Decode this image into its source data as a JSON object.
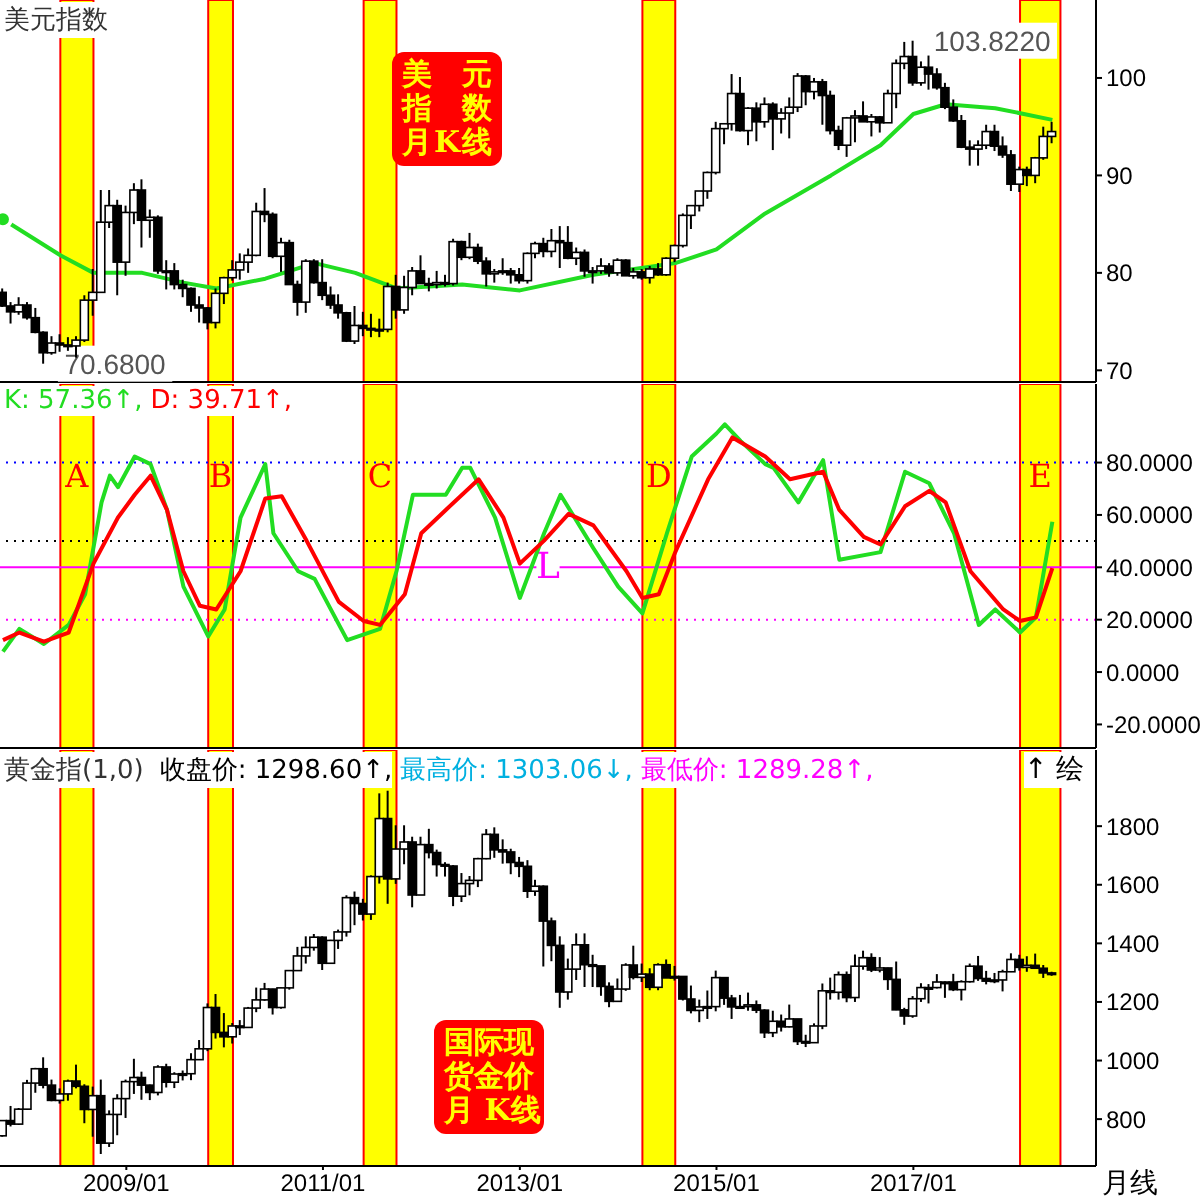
{
  "chart_data": [
    {
      "type": "candlestick",
      "title": "美元指数",
      "tick_labels": "y",
      "xlim": [
        "2007-09-20",
        "2018-11-10"
      ],
      "ylim": [
        68.8,
        108
      ],
      "yticks": [
        70,
        80,
        90,
        100
      ],
      "x": [
        "2007-10",
        "2007-11",
        "2007-12",
        "2008-01",
        "2008-02",
        "2008-03",
        "2008-04",
        "2008-05",
        "2008-06",
        "2008-07",
        "2008-08",
        "2008-09",
        "2008-10",
        "2008-11",
        "2008-12",
        "2009-01",
        "2009-02",
        "2009-03",
        "2009-04",
        "2009-05",
        "2009-06",
        "2009-07",
        "2009-08",
        "2009-09",
        "2009-10",
        "2009-11",
        "2009-12",
        "2010-01",
        "2010-02",
        "2010-03",
        "2010-04",
        "2010-05",
        "2010-06",
        "2010-07",
        "2010-08",
        "2010-09",
        "2010-10",
        "2010-11",
        "2010-12",
        "2011-01",
        "2011-02",
        "2011-03",
        "2011-04",
        "2011-05",
        "2011-06",
        "2011-07",
        "2011-08",
        "2011-09",
        "2011-10",
        "2011-11",
        "2011-12",
        "2012-01",
        "2012-02",
        "2012-03",
        "2012-04",
        "2012-05",
        "2012-06",
        "2012-07",
        "2012-08",
        "2012-09",
        "2012-10",
        "2012-11",
        "2012-12",
        "2013-01",
        "2013-02",
        "2013-03",
        "2013-04",
        "2013-05",
        "2013-06",
        "2013-07",
        "2013-08",
        "2013-09",
        "2013-10",
        "2013-11",
        "2013-12",
        "2014-01",
        "2014-02",
        "2014-03",
        "2014-04",
        "2014-05",
        "2014-06",
        "2014-07",
        "2014-08",
        "2014-09",
        "2014-10",
        "2014-11",
        "2014-12",
        "2015-01",
        "2015-02",
        "2015-03",
        "2015-04",
        "2015-05",
        "2015-06",
        "2015-07",
        "2015-08",
        "2015-09",
        "2015-10",
        "2015-11",
        "2015-12",
        "2016-01",
        "2016-02",
        "2016-03",
        "2016-04",
        "2016-05",
        "2016-06",
        "2016-07",
        "2016-08",
        "2016-09",
        "2016-10",
        "2016-11",
        "2016-12",
        "2017-01",
        "2017-02",
        "2017-03",
        "2017-04",
        "2017-05",
        "2017-06",
        "2017-07",
        "2017-08",
        "2017-09",
        "2017-10",
        "2017-11",
        "2017-12",
        "2018-01",
        "2018-02",
        "2018-03",
        "2018-04",
        "2018-05",
        "2018-06"
      ],
      "ohlc": [
        [
          78.0,
          78.4,
          76.5,
          76.6
        ],
        [
          76.6,
          77.0,
          74.8,
          76.0
        ],
        [
          76.0,
          77.5,
          75.7,
          76.7
        ],
        [
          76.7,
          77.0,
          75.2,
          75.4
        ],
        [
          75.4,
          76.4,
          73.8,
          73.9
        ],
        [
          73.9,
          74.0,
          70.68,
          71.8
        ],
        [
          71.8,
          73.5,
          71.6,
          72.8
        ],
        [
          72.8,
          73.7,
          71.9,
          72.6
        ],
        [
          72.6,
          73.4,
          72.0,
          72.5
        ],
        [
          72.5,
          73.5,
          71.3,
          73.1
        ],
        [
          73.1,
          77.7,
          72.9,
          77.2
        ],
        [
          77.2,
          80.4,
          75.6,
          78.0
        ],
        [
          78.0,
          88.5,
          78.0,
          85.2
        ],
        [
          85.2,
          88.5,
          84.6,
          86.9
        ],
        [
          86.9,
          87.5,
          77.7,
          81.1
        ],
        [
          81.1,
          86.9,
          79.7,
          86.2
        ],
        [
          86.2,
          89.2,
          85.0,
          88.5
        ],
        [
          88.5,
          89.6,
          82.6,
          85.4
        ],
        [
          85.4,
          86.5,
          83.6,
          85.7
        ],
        [
          85.7,
          85.9,
          79.9,
          80.2
        ],
        [
          80.2,
          81.3,
          78.3,
          80.2
        ],
        [
          80.2,
          81.0,
          78.3,
          78.8
        ],
        [
          78.8,
          79.3,
          77.5,
          78.4
        ],
        [
          78.4,
          78.5,
          76.0,
          76.7
        ],
        [
          76.7,
          77.6,
          74.9,
          76.4
        ],
        [
          76.4,
          76.5,
          74.2,
          74.9
        ],
        [
          74.9,
          78.4,
          74.3,
          77.9
        ],
        [
          77.9,
          79.6,
          76.8,
          79.5
        ],
        [
          79.5,
          81.3,
          79.2,
          80.3
        ],
        [
          80.3,
          82.0,
          79.3,
          81.1
        ],
        [
          81.1,
          82.5,
          80.0,
          81.8
        ],
        [
          81.8,
          87.2,
          81.7,
          86.3
        ],
        [
          86.3,
          88.7,
          85.2,
          86.0
        ],
        [
          86.0,
          86.2,
          81.5,
          81.7
        ],
        [
          81.7,
          83.6,
          80.1,
          83.1
        ],
        [
          83.1,
          83.4,
          78.8,
          78.8
        ],
        [
          78.8,
          79.2,
          75.6,
          77.0
        ],
        [
          77.0,
          81.4,
          75.9,
          81.2
        ],
        [
          81.2,
          81.4,
          78.9,
          79.0
        ],
        [
          79.0,
          81.4,
          77.2,
          77.7
        ],
        [
          77.7,
          78.6,
          76.3,
          76.7
        ],
        [
          76.7,
          77.8,
          75.3,
          75.9
        ],
        [
          75.9,
          76.0,
          72.9,
          73.0
        ],
        [
          73.0,
          76.6,
          72.7,
          74.6
        ],
        [
          74.6,
          76.0,
          73.5,
          74.3
        ],
        [
          74.3,
          75.8,
          73.4,
          74.2
        ],
        [
          74.2,
          75.3,
          73.4,
          74.2
        ],
        [
          74.2,
          79.0,
          73.9,
          78.6
        ],
        [
          78.6,
          79.8,
          75.3,
          76.2
        ],
        [
          76.2,
          79.7,
          75.8,
          78.5
        ],
        [
          78.5,
          80.6,
          77.7,
          80.2
        ],
        [
          80.2,
          81.8,
          78.9,
          78.9
        ],
        [
          78.9,
          79.5,
          78.1,
          78.8
        ],
        [
          78.8,
          80.2,
          78.4,
          79.0
        ],
        [
          79.0,
          79.8,
          78.6,
          78.9
        ],
        [
          78.9,
          83.5,
          78.7,
          83.2
        ],
        [
          83.2,
          83.3,
          81.3,
          81.6
        ],
        [
          81.6,
          84.1,
          81.4,
          82.6
        ],
        [
          82.6,
          83.0,
          80.9,
          81.2
        ],
        [
          81.2,
          81.6,
          78.6,
          79.9
        ],
        [
          79.9,
          80.4,
          79.0,
          80.1
        ],
        [
          80.1,
          81.5,
          79.8,
          80.2
        ],
        [
          80.2,
          80.5,
          78.9,
          79.8
        ],
        [
          79.8,
          80.5,
          78.9,
          79.2
        ],
        [
          79.2,
          82.1,
          78.9,
          82.0
        ],
        [
          82.0,
          83.2,
          81.5,
          83.0
        ],
        [
          83.0,
          83.6,
          81.6,
          82.2
        ],
        [
          82.2,
          84.5,
          81.6,
          83.3
        ],
        [
          83.3,
          84.8,
          80.5,
          83.1
        ],
        [
          83.1,
          84.8,
          81.4,
          81.5
        ],
        [
          81.5,
          82.6,
          80.8,
          82.1
        ],
        [
          82.1,
          82.4,
          79.6,
          80.2
        ],
        [
          80.2,
          80.6,
          78.9,
          80.2
        ],
        [
          80.2,
          81.5,
          79.9,
          80.7
        ],
        [
          80.7,
          81.0,
          79.6,
          80.0
        ],
        [
          80.0,
          81.5,
          79.7,
          81.3
        ],
        [
          81.3,
          81.4,
          79.7,
          79.7
        ],
        [
          79.7,
          80.5,
          79.4,
          80.1
        ],
        [
          80.1,
          80.4,
          79.3,
          79.5
        ],
        [
          79.5,
          80.7,
          78.9,
          80.4
        ],
        [
          80.4,
          81.0,
          79.7,
          79.8
        ],
        [
          79.8,
          81.6,
          79.7,
          81.5
        ],
        [
          81.5,
          82.9,
          81.1,
          82.8
        ],
        [
          82.8,
          86.1,
          82.6,
          85.9
        ],
        [
          85.9,
          86.9,
          84.5,
          86.9
        ],
        [
          86.9,
          88.4,
          86.3,
          88.4
        ],
        [
          88.4,
          90.4,
          87.6,
          90.3
        ],
        [
          90.3,
          95.5,
          90.1,
          94.8
        ],
        [
          94.8,
          95.3,
          93.2,
          95.3
        ],
        [
          95.3,
          100.4,
          94.6,
          98.4
        ],
        [
          98.4,
          100.1,
          94.5,
          94.6
        ],
        [
          94.6,
          97.0,
          93.1,
          96.9
        ],
        [
          96.9,
          97.5,
          93.5,
          95.5
        ],
        [
          95.5,
          98.0,
          94.9,
          97.3
        ],
        [
          97.3,
          97.5,
          92.6,
          95.8
        ],
        [
          95.8,
          96.9,
          94.3,
          96.4
        ],
        [
          96.4,
          98.0,
          93.8,
          97.0
        ],
        [
          97.0,
          100.5,
          96.5,
          100.2
        ],
        [
          100.2,
          100.3,
          97.2,
          98.6
        ],
        [
          98.6,
          100.0,
          97.8,
          99.6
        ],
        [
          99.6,
          99.9,
          95.2,
          98.2
        ],
        [
          98.2,
          98.7,
          94.2,
          94.6
        ],
        [
          94.6,
          95.1,
          92.6,
          93.1
        ],
        [
          93.1,
          96.0,
          91.9,
          95.9
        ],
        [
          95.9,
          96.7,
          93.4,
          96.1
        ],
        [
          96.1,
          97.6,
          95.5,
          95.5
        ],
        [
          95.5,
          96.3,
          94.0,
          96.0
        ],
        [
          96.0,
          96.1,
          94.4,
          95.4
        ],
        [
          95.4,
          98.8,
          95.4,
          98.4
        ],
        [
          98.4,
          101.9,
          96.9,
          101.5
        ],
        [
          101.5,
          103.7,
          100.9,
          102.2
        ],
        [
          102.2,
          103.822,
          99.2,
          99.5
        ],
        [
          99.5,
          101.7,
          99.2,
          101.1
        ],
        [
          101.1,
          102.3,
          98.8,
          100.4
        ],
        [
          100.4,
          101.0,
          98.8,
          99.0
        ],
        [
          99.0,
          99.5,
          96.8,
          97.0
        ],
        [
          97.0,
          97.8,
          95.5,
          95.6
        ],
        [
          95.6,
          96.2,
          92.8,
          92.9
        ],
        [
          92.9,
          93.6,
          91.0,
          92.7
        ],
        [
          92.7,
          93.6,
          91.0,
          93.1
        ],
        [
          93.1,
          95.2,
          92.7,
          94.5
        ],
        [
          94.5,
          95.2,
          92.5,
          93.0
        ],
        [
          93.0,
          94.0,
          91.8,
          92.1
        ],
        [
          92.1,
          92.6,
          88.4,
          89.1
        ],
        [
          89.1,
          90.9,
          88.3,
          90.6
        ],
        [
          90.6,
          90.9,
          88.9,
          90.0
        ],
        [
          90.0,
          91.9,
          89.2,
          91.8
        ],
        [
          91.8,
          95.0,
          91.6,
          94.0
        ],
        [
          94.0,
          95.5,
          93.3,
          94.5
        ]
      ],
      "series": [
        {
          "type": "line",
          "color": "#22dd22",
          "x": [
            "2007-10",
            "2008-05",
            "2008-09",
            "2009-03",
            "2009-08",
            "2009-12",
            "2010-06",
            "2010-12",
            "2011-05",
            "2011-10",
            "2012-06",
            "2013-01",
            "2013-10",
            "2014-08",
            "2015-01",
            "2015-07",
            "2016-03",
            "2016-09",
            "2017-01",
            "2017-05",
            "2017-11",
            "2018-06"
          ],
          "values": [
            85.5,
            81.8,
            80.0,
            80.0,
            79.0,
            78.4,
            79.4,
            81.0,
            80.0,
            78.4,
            78.8,
            78.2,
            79.8,
            81.0,
            82.4,
            86.1,
            90.0,
            93.1,
            96.3,
            97.3,
            96.9,
            95.7
          ]
        }
      ],
      "marker": "none",
      "bands": [
        {
          "axis": "x",
          "from": "2008-05",
          "to": "2008-09",
          "color": "#ffff00"
        },
        {
          "axis": "x",
          "from": "2009-11",
          "to": "2010-02",
          "color": "#ffff00"
        },
        {
          "axis": "x",
          "from": "2011-06",
          "to": "2011-10",
          "color": "#ffff00"
        },
        {
          "axis": "x",
          "from": "2014-04",
          "to": "2014-08",
          "color": "#ffff00"
        },
        {
          "axis": "x",
          "from": "2018-02",
          "to": "2018-07",
          "color": "#ffff00"
        }
      ],
      "annotations": [
        {
          "text": "103.8220",
          "x": "2017-01",
          "y": 103.822
        },
        {
          "text": "70.6800",
          "x": "2008-03",
          "y": 70.68
        },
        "美元指数月K线"
      ]
    },
    {
      "type": "line",
      "tick_labels": "y",
      "marker": "none",
      "xlim": [
        "2007-09-20",
        "2018-11-10"
      ],
      "ylim": [
        -29,
        110
      ],
      "yticks": [
        {
          "value": 80,
          "label": "80.0000"
        },
        {
          "value": 60,
          "label": "60.0000"
        },
        {
          "value": 40,
          "label": "40.0000"
        },
        {
          "value": 20,
          "label": "20.0000"
        },
        {
          "value": 0,
          "label": "0.0000"
        },
        {
          "value": -20,
          "label": "-20.0000"
        }
      ],
      "series": [
        {
          "color": "#22dd22",
          "x": [
            "2007-10",
            "2007-12",
            "2008-03",
            "2008-06",
            "2008-08",
            "2008-10",
            "2008-11",
            "2008-12",
            "2009-02",
            "2009-04",
            "2009-06",
            "2009-08",
            "2009-11",
            "2010-01",
            "2010-03",
            "2010-06",
            "2010-07",
            "2010-10",
            "2010-12",
            "2011-04",
            "2011-08",
            "2011-10",
            "2011-12",
            "2012-04",
            "2012-06",
            "2012-07",
            "2012-10",
            "2013-01",
            "2013-04",
            "2013-06",
            "2013-10",
            "2014-01",
            "2014-04",
            "2014-07",
            "2014-10",
            "2015-01",
            "2015-02",
            "2015-04",
            "2015-07",
            "2015-08",
            "2015-11",
            "2016-02",
            "2016-04",
            "2016-09",
            "2016-12",
            "2017-03",
            "2017-06",
            "2017-09",
            "2017-11",
            "2018-02",
            "2018-04",
            "2018-06"
          ],
          "values": [
            7.8,
            16.5,
            10.7,
            18,
            29.7,
            64.8,
            75,
            70.6,
            82.3,
            79.4,
            61.9,
            32.6,
            13.6,
            23.9,
            59,
            79.4,
            53,
            38.5,
            35.6,
            12.2,
            16.5,
            38.5,
            67.7,
            67.7,
            78,
            78,
            59,
            28.3,
            53,
            67.7,
            47.3,
            32.6,
            22.4,
            53,
            82.3,
            91.1,
            94.6,
            88.2,
            79.4,
            78,
            64.8,
            80.9,
            42.9,
            45.8,
            76.5,
            72.1,
            53,
            18,
            23.9,
            15.1,
            20.9,
            57.4
          ]
        },
        {
          "color": "#ff0000",
          "x": [
            "2007-10",
            "2007-12",
            "2008-03",
            "2008-06",
            "2008-09",
            "2008-12",
            "2009-02",
            "2009-04",
            "2009-06",
            "2009-08",
            "2009-10",
            "2009-12",
            "2010-03",
            "2010-06",
            "2010-08",
            "2010-11",
            "2011-03",
            "2011-06",
            "2011-08",
            "2011-11",
            "2012-01",
            "2012-04",
            "2012-08",
            "2012-11",
            "2013-01",
            "2013-04",
            "2013-07",
            "2013-10",
            "2014-02",
            "2014-04",
            "2014-06",
            "2014-08",
            "2014-12",
            "2015-03",
            "2015-07",
            "2015-10",
            "2016-02",
            "2016-04",
            "2016-07",
            "2016-09",
            "2016-12",
            "2017-03",
            "2017-05",
            "2017-08",
            "2017-12",
            "2018-02",
            "2018-04",
            "2018-06"
          ],
          "values": [
            12.2,
            15.1,
            11.6,
            15.1,
            41.4,
            59,
            67.7,
            75,
            61.9,
            38.5,
            25.3,
            23.9,
            38.5,
            66.3,
            67.1,
            50.2,
            26.8,
            19.5,
            18,
            29.7,
            53,
            61.9,
            73.6,
            59,
            41.4,
            50.2,
            60.4,
            56,
            38.5,
            28.3,
            29.7,
            45.8,
            73.6,
            89.6,
            82.3,
            73.6,
            76.5,
            61.9,
            51.6,
            48.7,
            63.3,
            69.2,
            64.8,
            38.5,
            23.9,
            19.5,
            20.9,
            39.7
          ]
        }
      ],
      "ref_lines": [
        {
          "axis": "y",
          "value": 80,
          "color": "#0000ff",
          "line_style": "dotted"
        },
        {
          "axis": "y",
          "value": 50,
          "color": "#000000",
          "line_style": "dotted"
        },
        {
          "axis": "y",
          "value": 40,
          "color": "#ff00ff",
          "line_style": "solid",
          "label": "L"
        },
        {
          "axis": "y",
          "value": 20,
          "color": "#ff00ff",
          "line_style": "dotted"
        }
      ],
      "bands": [
        {
          "axis": "x",
          "from": "2008-05",
          "to": "2008-09",
          "color": "#ffff00",
          "label": "A"
        },
        {
          "axis": "x",
          "from": "2009-11",
          "to": "2010-02",
          "color": "#ffff00",
          "label": "B"
        },
        {
          "axis": "x",
          "from": "2011-06",
          "to": "2011-10",
          "color": "#ffff00",
          "label": "C"
        },
        {
          "axis": "x",
          "from": "2014-04",
          "to": "2014-08",
          "color": "#ffff00",
          "label": "D"
        },
        {
          "axis": "x",
          "from": "2018-02",
          "to": "2018-07",
          "color": "#ffff00",
          "label": "E"
        }
      ],
      "annotations": [
        "K: 57.36↑,",
        "D: 39.71↑,"
      ]
    },
    {
      "type": "candlestick",
      "title": "黄金指(1,0)",
      "xlim": [
        "2007-09-20",
        "2018-11-10"
      ],
      "xticks": [
        {
          "value": "2009-01",
          "label": "2009/01"
        },
        {
          "value": "2011-01",
          "label": "2011/01"
        },
        {
          "value": "2013-01",
          "label": "2013/01"
        },
        {
          "value": "2015-01",
          "label": "2015/01"
        },
        {
          "value": "2017-01",
          "label": "2017/01"
        }
      ],
      "ylim": [
        640,
        2060
      ],
      "yticks": [
        800,
        1000,
        1200,
        1400,
        1600,
        1800
      ],
      "x": [
        "2007-10",
        "2007-11",
        "2007-12",
        "2008-01",
        "2008-02",
        "2008-03",
        "2008-04",
        "2008-05",
        "2008-06",
        "2008-07",
        "2008-08",
        "2008-09",
        "2008-10",
        "2008-11",
        "2008-12",
        "2009-01",
        "2009-02",
        "2009-03",
        "2009-04",
        "2009-05",
        "2009-06",
        "2009-07",
        "2009-08",
        "2009-09",
        "2009-10",
        "2009-11",
        "2009-12",
        "2010-01",
        "2010-02",
        "2010-03",
        "2010-04",
        "2010-05",
        "2010-06",
        "2010-07",
        "2010-08",
        "2010-09",
        "2010-10",
        "2010-11",
        "2010-12",
        "2011-01",
        "2011-02",
        "2011-03",
        "2011-04",
        "2011-05",
        "2011-06",
        "2011-07",
        "2011-08",
        "2011-09",
        "2011-10",
        "2011-11",
        "2011-12",
        "2012-01",
        "2012-02",
        "2012-03",
        "2012-04",
        "2012-05",
        "2012-06",
        "2012-07",
        "2012-08",
        "2012-09",
        "2012-10",
        "2012-11",
        "2012-12",
        "2013-01",
        "2013-02",
        "2013-03",
        "2013-04",
        "2013-05",
        "2013-06",
        "2013-07",
        "2013-08",
        "2013-09",
        "2013-10",
        "2013-11",
        "2013-12",
        "2014-01",
        "2014-02",
        "2014-03",
        "2014-04",
        "2014-05",
        "2014-06",
        "2014-07",
        "2014-08",
        "2014-09",
        "2014-10",
        "2014-11",
        "2014-12",
        "2015-01",
        "2015-02",
        "2015-03",
        "2015-04",
        "2015-05",
        "2015-06",
        "2015-07",
        "2015-08",
        "2015-09",
        "2015-10",
        "2015-11",
        "2015-12",
        "2016-01",
        "2016-02",
        "2016-03",
        "2016-04",
        "2016-05",
        "2016-06",
        "2016-07",
        "2016-08",
        "2016-09",
        "2016-10",
        "2016-11",
        "2016-12",
        "2017-01",
        "2017-02",
        "2017-03",
        "2017-04",
        "2017-05",
        "2017-06",
        "2017-07",
        "2017-08",
        "2017-09",
        "2017-10",
        "2017-11",
        "2017-12",
        "2018-01",
        "2018-02",
        "2018-03",
        "2018-04",
        "2018-05",
        "2018-06"
      ],
      "ohlc": [
        [
          743,
          795,
          740,
          795
        ],
        [
          795,
          845,
          775,
          783
        ],
        [
          783,
          838,
          780,
          834
        ],
        [
          834,
          934,
          832,
          923
        ],
        [
          923,
          975,
          890,
          972
        ],
        [
          972,
          1011,
          905,
          916
        ],
        [
          916,
          935,
          861,
          864
        ],
        [
          864,
          905,
          853,
          886
        ],
        [
          886,
          935,
          863,
          930
        ],
        [
          930,
          986,
          905,
          912
        ],
        [
          912,
          919,
          786,
          833
        ],
        [
          833,
          911,
          740,
          880
        ],
        [
          880,
          935,
          681,
          718
        ],
        [
          718,
          830,
          705,
          816
        ],
        [
          816,
          885,
          745,
          870
        ],
        [
          870,
          935,
          804,
          928
        ],
        [
          928,
          1006,
          886,
          942
        ],
        [
          942,
          962,
          866,
          916
        ],
        [
          916,
          918,
          865,
          891
        ],
        [
          891,
          984,
          881,
          978
        ],
        [
          978,
          989,
          908,
          926
        ],
        [
          926,
          960,
          906,
          954
        ],
        [
          954,
          966,
          932,
          955
        ],
        [
          955,
          1025,
          933,
          1003
        ],
        [
          1003,
          1070,
          1002,
          1040
        ],
        [
          1040,
          1195,
          1032,
          1181
        ],
        [
          1181,
          1227,
          1075,
          1096
        ],
        [
          1096,
          1162,
          1045,
          1081
        ],
        [
          1081,
          1128,
          1058,
          1118
        ],
        [
          1118,
          1138,
          1087,
          1113
        ],
        [
          1113,
          1183,
          1113,
          1179
        ],
        [
          1179,
          1249,
          1165,
          1207
        ],
        [
          1207,
          1265,
          1204,
          1244
        ],
        [
          1244,
          1245,
          1157,
          1181
        ],
        [
          1181,
          1249,
          1177,
          1248
        ],
        [
          1248,
          1308,
          1242,
          1307
        ],
        [
          1307,
          1388,
          1306,
          1357
        ],
        [
          1357,
          1424,
          1331,
          1386
        ],
        [
          1386,
          1432,
          1375,
          1421
        ],
        [
          1421,
          1424,
          1309,
          1332
        ],
        [
          1332,
          1412,
          1330,
          1410
        ],
        [
          1410,
          1447,
          1381,
          1439
        ],
        [
          1439,
          1564,
          1423,
          1556
        ],
        [
          1556,
          1577,
          1462,
          1536
        ],
        [
          1536,
          1552,
          1478,
          1500
        ],
        [
          1500,
          1632,
          1480,
          1628
        ],
        [
          1628,
          1912,
          1604,
          1826
        ],
        [
          1826,
          1921,
          1535,
          1620
        ],
        [
          1620,
          1803,
          1603,
          1722
        ],
        [
          1722,
          1803,
          1670,
          1746
        ],
        [
          1746,
          1764,
          1523,
          1565
        ],
        [
          1565,
          1764,
          1565,
          1737
        ],
        [
          1737,
          1791,
          1690,
          1710
        ],
        [
          1710,
          1720,
          1628,
          1669
        ],
        [
          1669,
          1677,
          1628,
          1664
        ],
        [
          1664,
          1667,
          1527,
          1561
        ],
        [
          1561,
          1640,
          1541,
          1604
        ],
        [
          1604,
          1630,
          1564,
          1615
        ],
        [
          1615,
          1692,
          1592,
          1689
        ],
        [
          1689,
          1790,
          1687,
          1772
        ],
        [
          1772,
          1796,
          1692,
          1719
        ],
        [
          1719,
          1755,
          1672,
          1712
        ],
        [
          1712,
          1723,
          1636,
          1676
        ],
        [
          1676,
          1695,
          1626,
          1663
        ],
        [
          1663,
          1684,
          1555,
          1578
        ],
        [
          1578,
          1617,
          1562,
          1595
        ],
        [
          1595,
          1598,
          1321,
          1476
        ],
        [
          1476,
          1488,
          1339,
          1393
        ],
        [
          1393,
          1424,
          1180,
          1234
        ],
        [
          1234,
          1348,
          1208,
          1312
        ],
        [
          1312,
          1434,
          1275,
          1395
        ],
        [
          1395,
          1434,
          1251,
          1327
        ],
        [
          1327,
          1361,
          1251,
          1323
        ],
        [
          1323,
          1323,
          1221,
          1253
        ],
        [
          1253,
          1267,
          1182,
          1202
        ],
        [
          1202,
          1280,
          1202,
          1244
        ],
        [
          1244,
          1332,
          1238,
          1326
        ],
        [
          1326,
          1392,
          1277,
          1284
        ],
        [
          1284,
          1331,
          1268,
          1295
        ],
        [
          1295,
          1315,
          1240,
          1250
        ],
        [
          1250,
          1332,
          1240,
          1327
        ],
        [
          1327,
          1345,
          1282,
          1282
        ],
        [
          1282,
          1323,
          1273,
          1287
        ],
        [
          1287,
          1288,
          1205,
          1210
        ],
        [
          1210,
          1256,
          1161,
          1171
        ],
        [
          1171,
          1208,
          1131,
          1183
        ],
        [
          1183,
          1239,
          1142,
          1184
        ],
        [
          1184,
          1307,
          1168,
          1283
        ],
        [
          1283,
          1284,
          1190,
          1213
        ],
        [
          1213,
          1224,
          1142,
          1183
        ],
        [
          1183,
          1224,
          1176,
          1184
        ],
        [
          1184,
          1232,
          1170,
          1190
        ],
        [
          1190,
          1205,
          1162,
          1172
        ],
        [
          1172,
          1175,
          1077,
          1095
        ],
        [
          1095,
          1170,
          1080,
          1134
        ],
        [
          1134,
          1157,
          1099,
          1115
        ],
        [
          1115,
          1191,
          1113,
          1142
        ],
        [
          1142,
          1142,
          1053,
          1065
        ],
        [
          1065,
          1088,
          1046,
          1061
        ],
        [
          1061,
          1127,
          1061,
          1118
        ],
        [
          1118,
          1263,
          1107,
          1238
        ],
        [
          1238,
          1283,
          1208,
          1233
        ],
        [
          1233,
          1304,
          1208,
          1293
        ],
        [
          1293,
          1304,
          1199,
          1215
        ],
        [
          1215,
          1362,
          1200,
          1322
        ],
        [
          1322,
          1375,
          1310,
          1351
        ],
        [
          1351,
          1366,
          1302,
          1309
        ],
        [
          1309,
          1353,
          1301,
          1316
        ],
        [
          1316,
          1317,
          1241,
          1277
        ],
        [
          1277,
          1338,
          1172,
          1173
        ],
        [
          1173,
          1180,
          1122,
          1152
        ],
        [
          1152,
          1220,
          1146,
          1211
        ],
        [
          1211,
          1264,
          1200,
          1249
        ],
        [
          1249,
          1261,
          1195,
          1249
        ],
        [
          1249,
          1295,
          1246,
          1268
        ],
        [
          1268,
          1270,
          1214,
          1268
        ],
        [
          1268,
          1296,
          1237,
          1242
        ],
        [
          1242,
          1274,
          1205,
          1269
        ],
        [
          1269,
          1331,
          1266,
          1322
        ],
        [
          1322,
          1357,
          1272,
          1280
        ],
        [
          1280,
          1306,
          1260,
          1271
        ],
        [
          1271,
          1299,
          1264,
          1275
        ],
        [
          1275,
          1310,
          1236,
          1303
        ],
        [
          1303,
          1366,
          1302,
          1345
        ],
        [
          1345,
          1361,
          1307,
          1318
        ],
        [
          1318,
          1356,
          1303,
          1325
        ],
        [
          1325,
          1365,
          1313,
          1315
        ],
        [
          1315,
          1326,
          1282,
          1299
        ],
        [
          1299,
          1303.06,
          1289.28,
          1298.6
        ]
      ],
      "bands": [
        {
          "axis": "x",
          "from": "2008-05",
          "to": "2008-09",
          "color": "#ffff00"
        },
        {
          "axis": "x",
          "from": "2009-11",
          "to": "2010-02",
          "color": "#ffff00"
        },
        {
          "axis": "x",
          "from": "2011-06",
          "to": "2011-10",
          "color": "#ffff00"
        },
        {
          "axis": "x",
          "from": "2014-04",
          "to": "2014-08",
          "color": "#ffff00"
        },
        {
          "axis": "x",
          "from": "2018-02",
          "to": "2018-07",
          "color": "#ffff00"
        }
      ],
      "annotations": [
        "收盘价: 1298.60↑,",
        "最高价: 1303.06↓,",
        "最低价: 1289.28↑,",
        "↑ 绘",
        "国际现货金价月 K线",
        "月线"
      ]
    }
  ]
}
